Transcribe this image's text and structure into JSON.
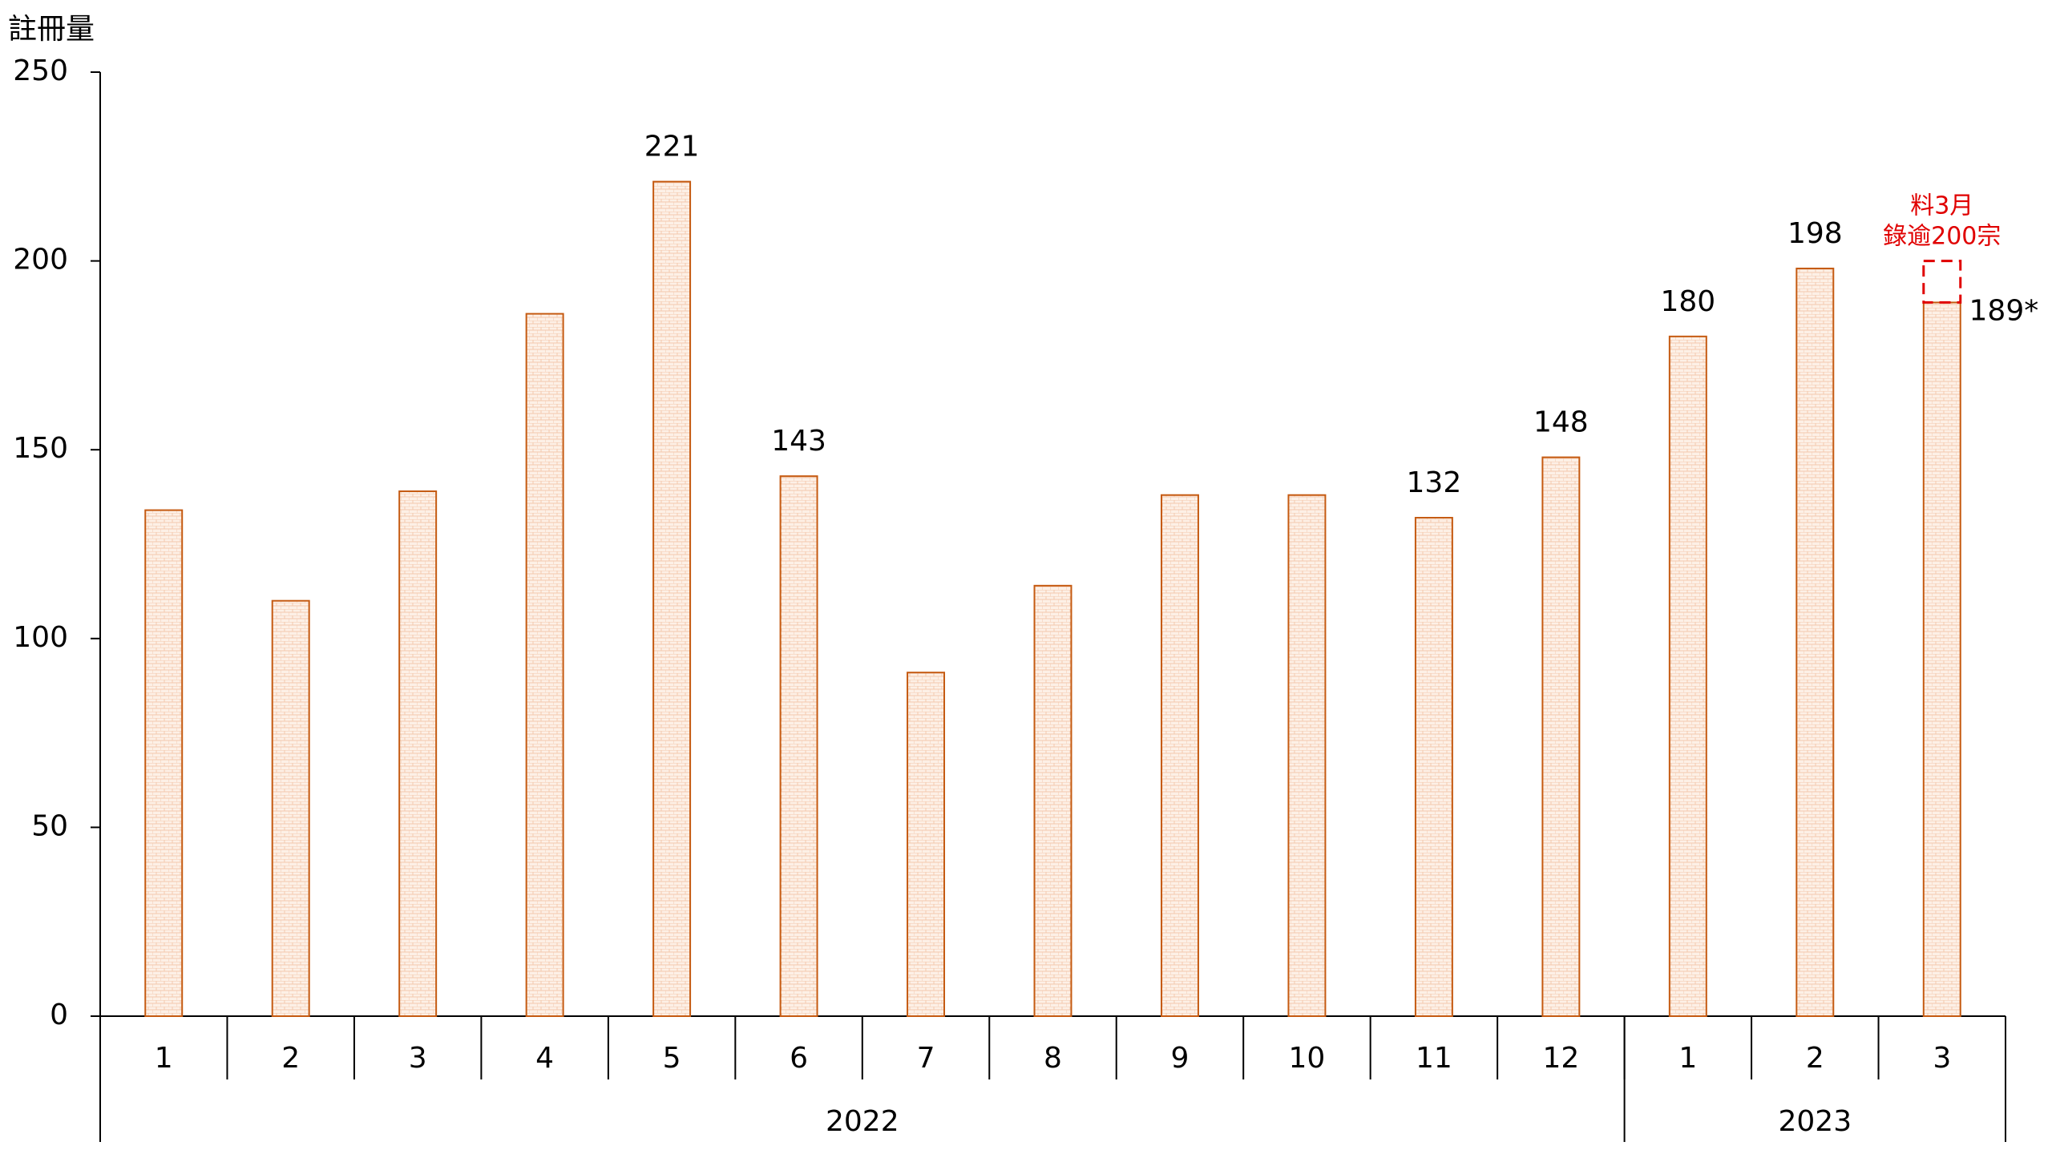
{
  "chart_data": {
    "type": "bar",
    "y_label": "註冊量",
    "categories": [
      "1",
      "2",
      "3",
      "4",
      "5",
      "6",
      "7",
      "8",
      "9",
      "10",
      "11",
      "12",
      "1",
      "2",
      "3"
    ],
    "x_groups": [
      {
        "label": "2022",
        "count": 12
      },
      {
        "label": "2023",
        "count": 3
      }
    ],
    "values": [
      134,
      110,
      139,
      186,
      221,
      143,
      91,
      114,
      138,
      138,
      132,
      148,
      180,
      198,
      189
    ],
    "value_labels": [
      null,
      null,
      null,
      null,
      "221",
      "143",
      null,
      null,
      null,
      null,
      "132",
      "148",
      "180",
      "198",
      "189*"
    ],
    "color": "#c55a11",
    "fill": "#fce4d6",
    "ylim": [
      0,
      250
    ],
    "yticks": [
      0,
      50,
      100,
      150,
      200,
      250
    ],
    "annotation": {
      "lines": [
        "料3月",
        "錄逾200宗"
      ],
      "target": 200,
      "color": "#e00000"
    }
  }
}
